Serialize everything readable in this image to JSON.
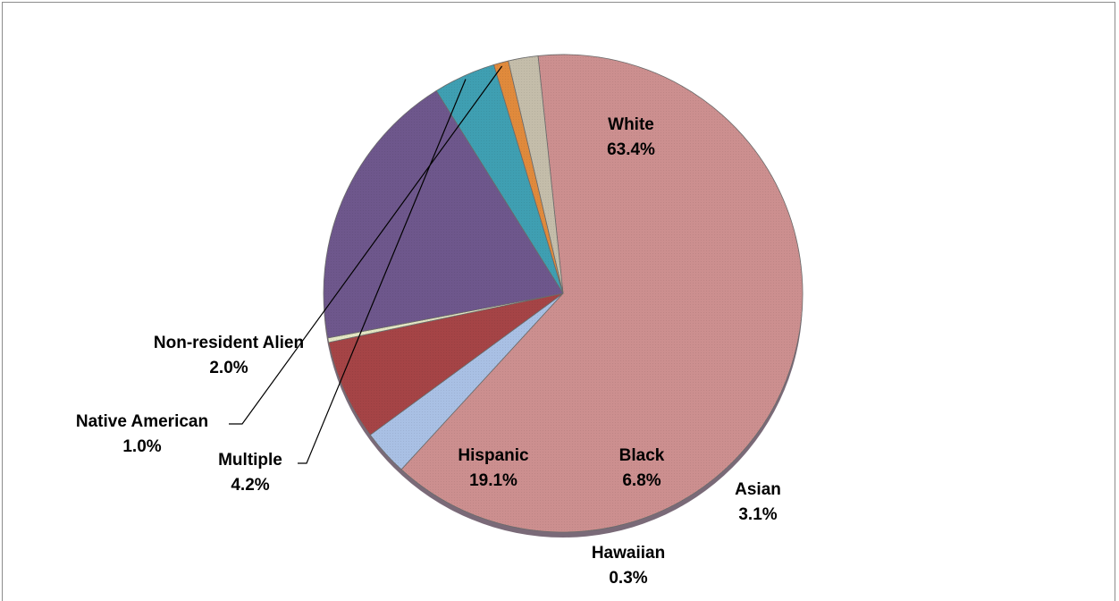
{
  "chart_data": {
    "type": "pie",
    "title": "",
    "slices": [
      {
        "name": "White",
        "value": 63.4,
        "label": "63.4%",
        "color": "#cc8f8f"
      },
      {
        "name": "Asian",
        "value": 3.1,
        "label": "3.1%",
        "color": "#a9c0e4"
      },
      {
        "name": "Black",
        "value": 6.8,
        "label": "6.8%",
        "color": "#a54446"
      },
      {
        "name": "Hawaiian",
        "value": 0.3,
        "label": "0.3%",
        "color": "#e4e6c4"
      },
      {
        "name": "Hispanic",
        "value": 19.1,
        "label": "19.1%",
        "color": "#6e578c"
      },
      {
        "name": "Multiple",
        "value": 4.2,
        "label": "4.2%",
        "color": "#3f9fb2"
      },
      {
        "name": "Native American",
        "value": 1.0,
        "label": "1.0%",
        "color": "#e08a3c"
      },
      {
        "name": "Non-resident Alien",
        "value": 2.0,
        "label": "2.0%",
        "color": "#c4bdaa"
      }
    ],
    "legend": "none",
    "data_labels": "category-and-percent"
  }
}
